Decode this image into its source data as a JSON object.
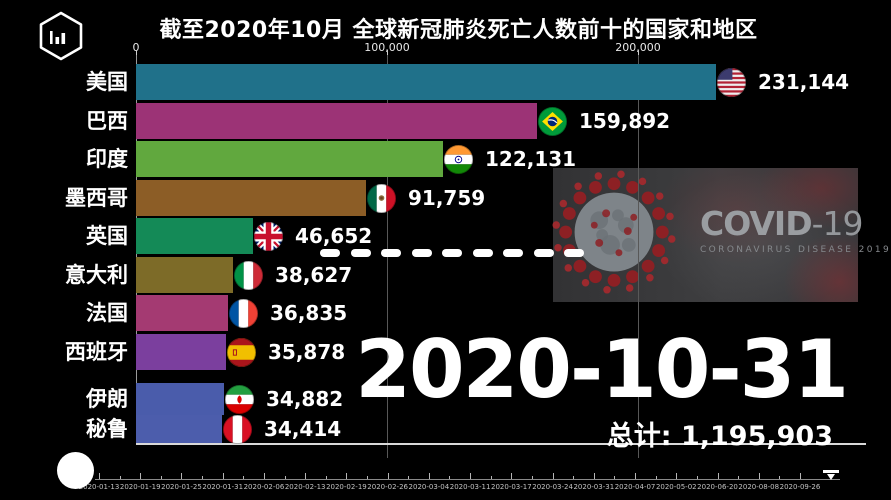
{
  "header": {
    "title": "截至2020年10月 全球新冠肺炎死亡人数前十的国家和地区",
    "logo_icon": "hexagon-bar-chart-logo"
  },
  "chart_data": {
    "type": "bar",
    "orientation": "horizontal",
    "title": "截至2020年10月 全球新冠肺炎死亡人数前十的国家和地区",
    "xlabel": "",
    "ylabel": "",
    "xlim": [
      0,
      292000
    ],
    "grid": true,
    "x_ticks": [
      {
        "value": 0,
        "label": "0"
      },
      {
        "value": 100000,
        "label": "100,000"
      },
      {
        "value": 200000,
        "label": "200,000"
      }
    ],
    "categories": [
      {
        "name": "美国",
        "value": 231144,
        "display": "231,144",
        "color": "#20718a",
        "flag": "us",
        "flag_icon": "flag-us-icon"
      },
      {
        "name": "巴西",
        "value": 159892,
        "display": "159,892",
        "color": "#9c3376",
        "flag": "br",
        "flag_icon": "flag-br-icon"
      },
      {
        "name": "印度",
        "value": 122131,
        "display": "122,131",
        "color": "#61a83e",
        "flag": "in",
        "flag_icon": "flag-in-icon"
      },
      {
        "name": "墨西哥",
        "value": 91759,
        "display": "91,759",
        "color": "#8c5d26",
        "flag": "mx",
        "flag_icon": "flag-mx-icon"
      },
      {
        "name": "英国",
        "value": 46652,
        "display": "46,652",
        "color": "#148a57",
        "flag": "gb",
        "flag_icon": "flag-gb-icon"
      },
      {
        "name": "意大利",
        "value": 38627,
        "display": "38,627",
        "color": "#7d6b28",
        "flag": "it",
        "flag_icon": "flag-it-icon"
      },
      {
        "name": "法国",
        "value": 36835,
        "display": "36,835",
        "color": "#a43a72",
        "flag": "fr",
        "flag_icon": "flag-fr-icon"
      },
      {
        "name": "西班牙",
        "value": 35878,
        "display": "35,878",
        "color": "#7b3f9e",
        "flag": "es",
        "flag_icon": "flag-es-icon"
      },
      {
        "name": "伊朗",
        "value": 34882,
        "display": "34,882",
        "color": "#4a5cab",
        "flag": "ir",
        "flag_icon": "flag-ir-icon"
      },
      {
        "name": "秘鲁",
        "value": 34414,
        "display": "34,414",
        "color": "#4c5dac",
        "flag": "pe",
        "flag_icon": "flag-pe-icon"
      }
    ]
  },
  "overlay": {
    "virus_icon": "coronavirus-icon",
    "covid_title_main": "COVID",
    "covid_title_suffix": "-19",
    "covid_subtitle": "CORONAVIRUS DISEASE 2019"
  },
  "date_display": "2020-10-31",
  "total": {
    "label": "总计:",
    "value": "1,195,903"
  },
  "timeline": {
    "dates": [
      "2020-01-13",
      "2020-01-19",
      "2020-01-25",
      "2020-01-31",
      "2020-02-06",
      "2020-02-13",
      "2020-02-19",
      "2020-02-26",
      "2020-03-04",
      "2020-03-11",
      "2020-03-17",
      "2020-03-24",
      "2020-03-31",
      "2020-04-07",
      "2020-05-02",
      "2020-06-20",
      "2020-08-08",
      "2020-09-26"
    ]
  }
}
